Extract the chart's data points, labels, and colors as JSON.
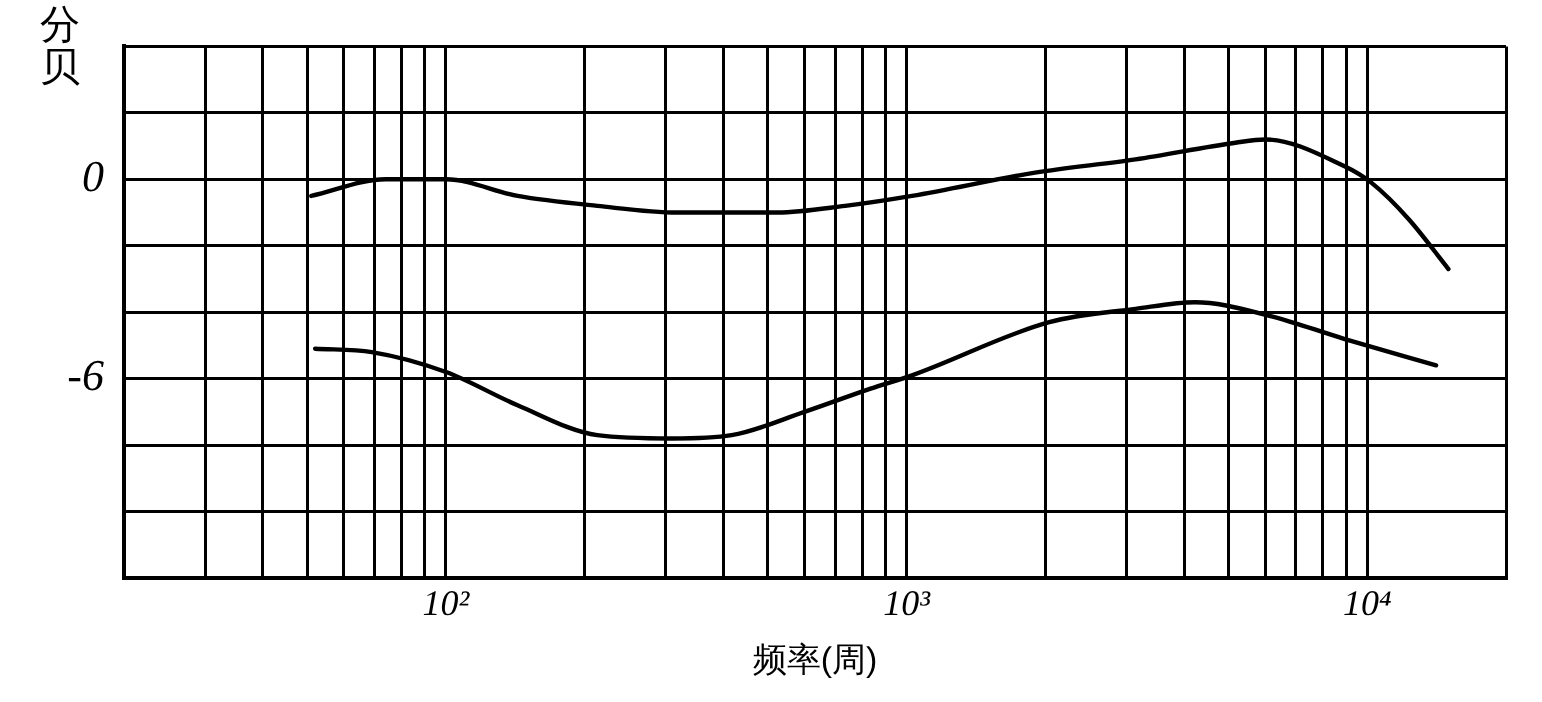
{
  "chart_data": {
    "type": "line",
    "xlabel": "频率(周)",
    "ylabel": "分贝",
    "log": "x",
    "grid": true,
    "marker": "none",
    "line_style": "solid",
    "xlim": [
      20,
      20000
    ],
    "ylim": [
      -12,
      4
    ],
    "xticks": [
      {
        "value": 20,
        "label": null
      },
      {
        "value": 30,
        "label": null
      },
      {
        "value": 40,
        "label": null
      },
      {
        "value": 50,
        "label": null
      },
      {
        "value": 60,
        "label": null
      },
      {
        "value": 70,
        "label": null
      },
      {
        "value": 80,
        "label": null
      },
      {
        "value": 90,
        "label": null
      },
      {
        "value": 100,
        "label": "10²"
      },
      {
        "value": 200,
        "label": null
      },
      {
        "value": 300,
        "label": null
      },
      {
        "value": 400,
        "label": null
      },
      {
        "value": 500,
        "label": null
      },
      {
        "value": 600,
        "label": null
      },
      {
        "value": 700,
        "label": null
      },
      {
        "value": 800,
        "label": null
      },
      {
        "value": 900,
        "label": null
      },
      {
        "value": 1000,
        "label": "10³"
      },
      {
        "value": 2000,
        "label": null
      },
      {
        "value": 3000,
        "label": null
      },
      {
        "value": 4000,
        "label": null
      },
      {
        "value": 5000,
        "label": null
      },
      {
        "value": 6000,
        "label": null
      },
      {
        "value": 7000,
        "label": null
      },
      {
        "value": 8000,
        "label": null
      },
      {
        "value": 9000,
        "label": null
      },
      {
        "value": 10000,
        "label": "10⁴"
      },
      {
        "value": 20000,
        "label": null
      }
    ],
    "yticks": [
      {
        "value": -12,
        "label": null
      },
      {
        "value": -10,
        "label": null
      },
      {
        "value": -8,
        "label": null
      },
      {
        "value": -6,
        "label": "-6"
      },
      {
        "value": -4,
        "label": null
      },
      {
        "value": -2,
        "label": null
      },
      0,
      {
        "value": 2,
        "label": null
      },
      {
        "value": 4,
        "label": null
      }
    ],
    "series": [
      {
        "color": "#000000",
        "x": [
          51,
          74,
          100,
          143,
          213,
          318,
          524,
          735,
          1027,
          1900,
          3140,
          5170,
          6000,
          8900,
          10200,
          12300,
          15000
        ],
        "values": [
          -0.5,
          0,
          0,
          -0.5,
          -0.8,
          -1,
          -1,
          -0.8,
          -0.5,
          0.2,
          0.6,
          1.1,
          1.2,
          0.4,
          -0.1,
          -1.2,
          -2.7
        ]
      },
      {
        "color": "#000000",
        "x": [
          52,
          69,
          100,
          143,
          213,
          309,
          417,
          600,
          835,
          1027,
          2040,
          3140,
          4230,
          6100,
          8900,
          14100
        ],
        "values": [
          -5.1,
          -5.2,
          -5.8,
          -6.8,
          -7.7,
          -7.8,
          -7.7,
          -7,
          -6.3,
          -5.9,
          -4.3,
          -3.9,
          -3.7,
          -4.1,
          -4.8,
          -5.6
        ]
      }
    ]
  }
}
